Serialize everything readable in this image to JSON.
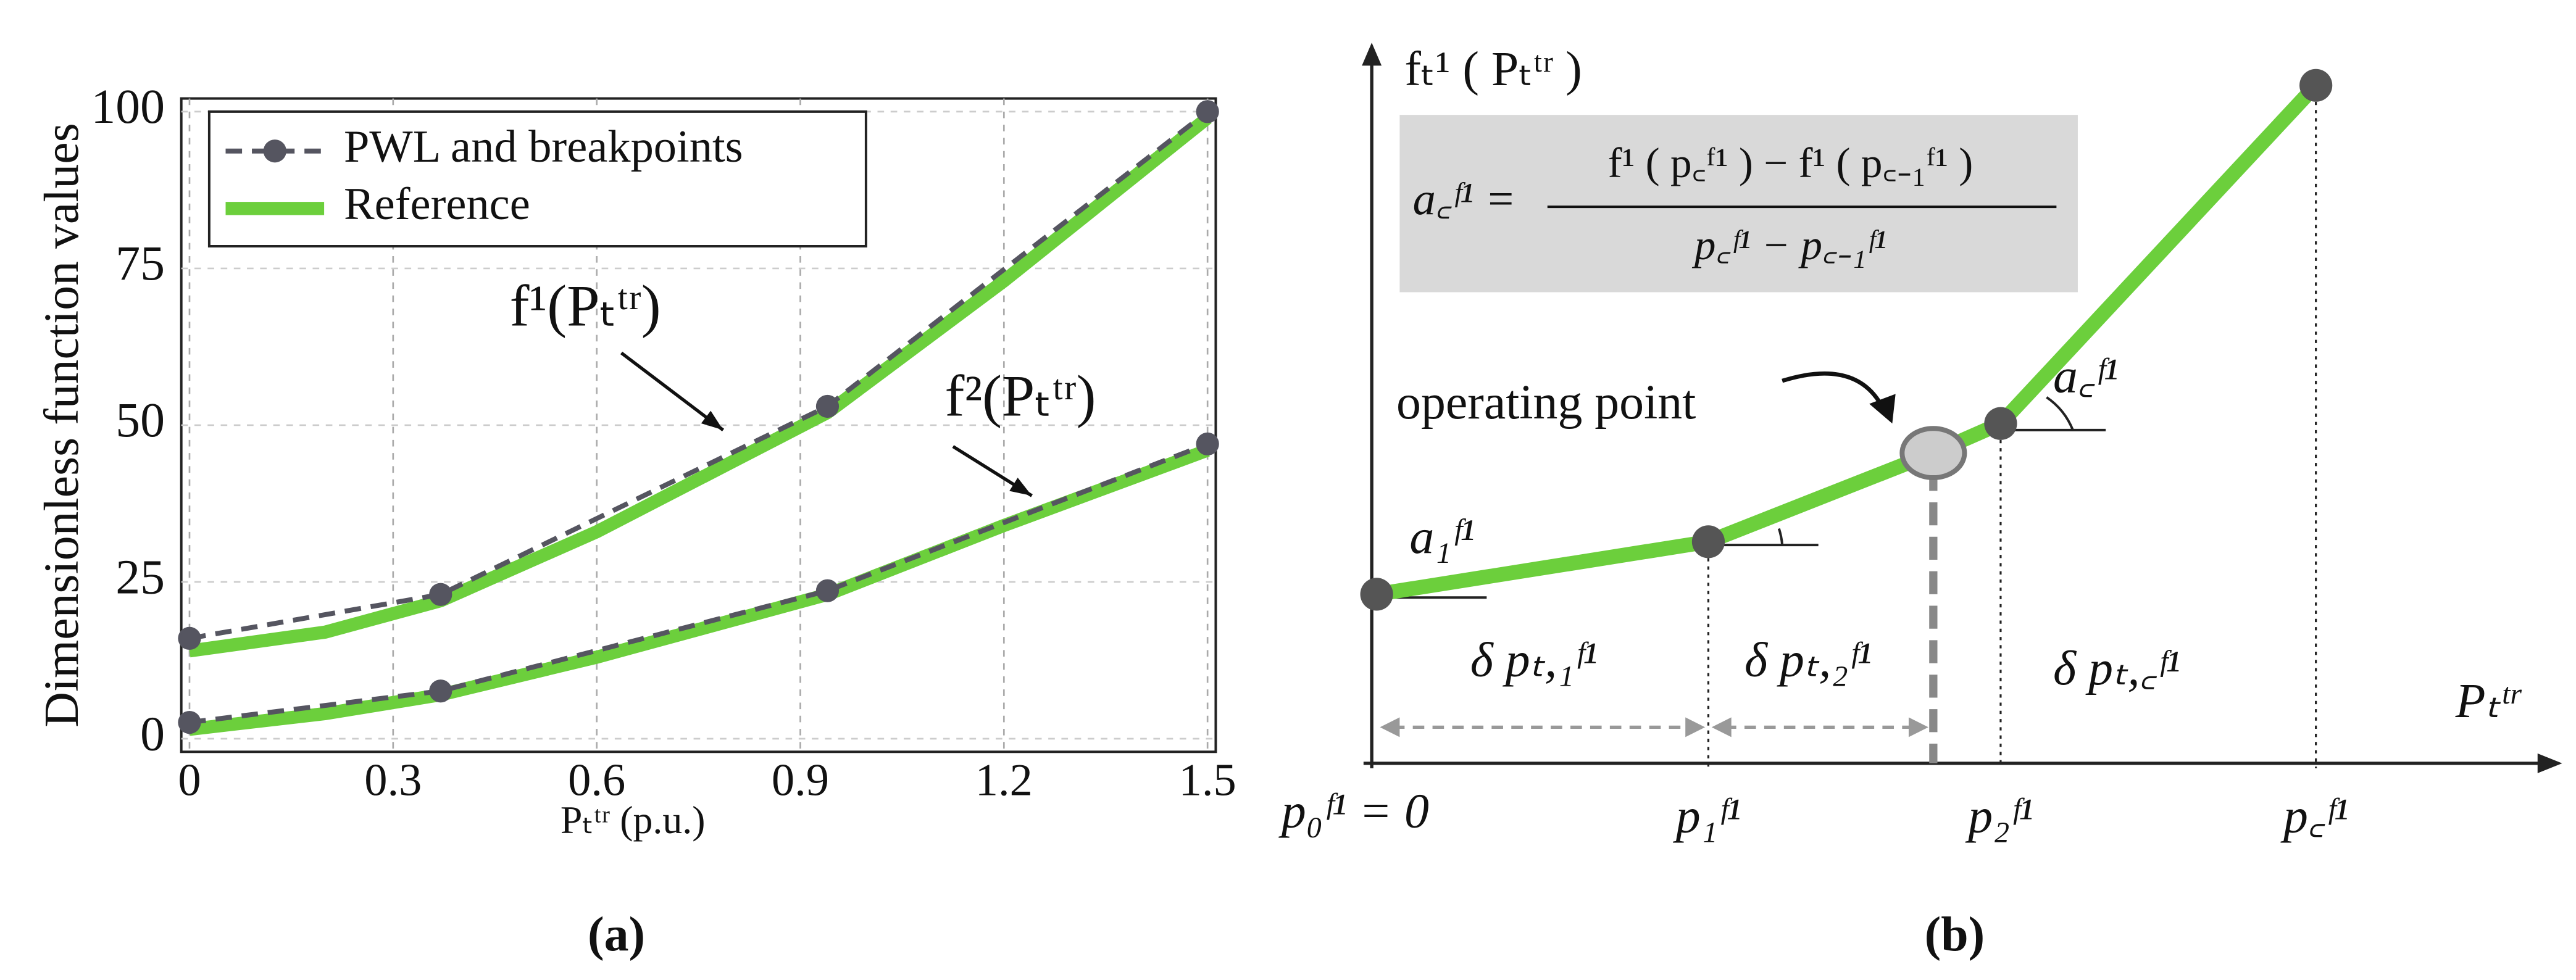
{
  "chart_data": {
    "type": "line",
    "xlabel": "Pₜᵗʳ (p.u.)",
    "ylabel": "Dimensionless function values",
    "xlim": [
      0,
      1.5
    ],
    "xticks": [
      0,
      0.3,
      0.6,
      0.9,
      1.2,
      1.5
    ],
    "ylim": [
      0,
      100
    ],
    "yticks": [
      0,
      25,
      50,
      75,
      100
    ],
    "grid": true,
    "legend": "upper left",
    "series": [
      {
        "name": "PWL and breakpoints",
        "color": "#555560",
        "style": "dashed",
        "markers": true,
        "x": [
          0,
          0.37,
          0.94,
          1.5
        ],
        "values": [
          16,
          23,
          53,
          100
        ]
      },
      {
        "name": "Reference",
        "color": "#6ccf3c",
        "style": "solid",
        "markers": false,
        "x": [
          0,
          0.2,
          0.37,
          0.6,
          0.94,
          1.2,
          1.5
        ],
        "values": [
          14,
          17,
          22,
          33,
          52,
          73,
          99
        ]
      },
      {
        "color": "#555560",
        "style": "dashed",
        "markers": true,
        "x": [
          0,
          0.37,
          0.94,
          1.5
        ],
        "values": [
          2.6,
          7.6,
          23.6,
          47
        ]
      },
      {
        "color": "#6ccf3c",
        "style": "solid",
        "markers": false,
        "x": [
          0,
          0.2,
          0.37,
          0.6,
          0.94,
          1.2,
          1.5
        ],
        "values": [
          1.5,
          4,
          7,
          13,
          23,
          34,
          46
        ]
      }
    ],
    "annotations": [
      "f¹(Pₜᵗʳ)",
      "f²(Pₜᵗʳ)"
    ],
    "caption": "(a)"
  },
  "panel_b": {
    "y_label": "fₜ¹ ( Pₜᵗʳ )",
    "formula": {
      "lhs": "a꜀ᶠ¹ =",
      "numerator": "f¹ ( p꜀ᶠ¹ ) − f¹ ( p꜀₋₁ᶠ¹ )",
      "denominator": "p꜀ᶠ¹ − p꜀₋₁ᶠ¹"
    },
    "operating_point": "operating point",
    "slope_1": "a₁ᶠ¹",
    "slope_c": "a꜀ᶠ¹",
    "deltas": [
      "δ pₜ,₁ᶠ¹",
      "δ pₜ,₂ᶠ¹",
      "δ pₜ,꜀ᶠ¹"
    ],
    "x_label": "Pₜᵗʳ",
    "breakpoints": [
      "p₀ᶠ¹ = 0",
      "p₁ᶠ¹",
      "p₂ᶠ¹",
      "p꜀ᶠ¹"
    ],
    "caption": "(b)"
  }
}
